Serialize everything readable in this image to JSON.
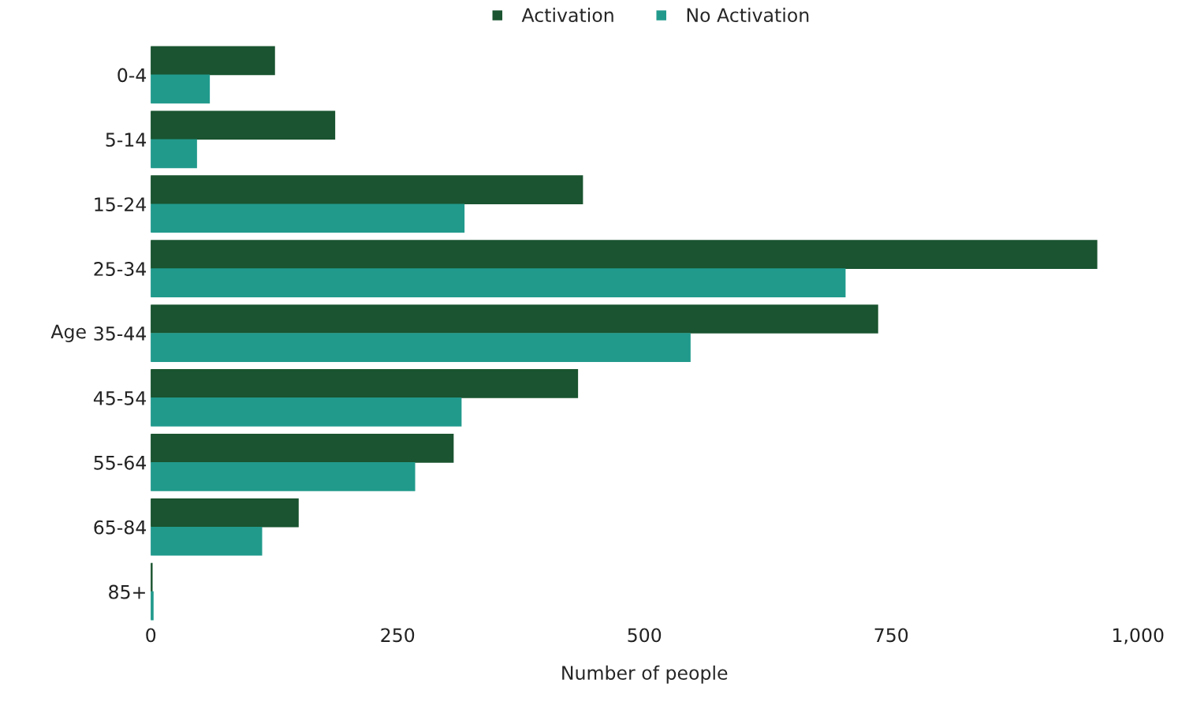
{
  "chart_data": {
    "type": "bar",
    "orientation": "horizontal",
    "xlabel": "Number of people",
    "ylabel": "Age",
    "categories": [
      "0-4",
      "5-14",
      "15-24",
      "25-34",
      "35-44",
      "45-54",
      "55-64",
      "65-84",
      "85+"
    ],
    "series": [
      {
        "name": "Activation",
        "color": "#1a5430",
        "values": [
          125,
          186,
          437,
          958,
          736,
          432,
          306,
          149,
          1
        ]
      },
      {
        "name": "No Activation",
        "color": "#219a8c",
        "values": [
          59,
          46,
          317,
          703,
          546,
          314,
          267,
          112,
          2
        ]
      }
    ],
    "xlim": [
      0,
      1000
    ],
    "xticks": [
      0,
      250,
      500,
      {
        "value": 750,
        "label": "750"
      },
      {
        "value": 1000,
        "label": "1,000"
      }
    ],
    "grid": false,
    "legend": "top"
  }
}
